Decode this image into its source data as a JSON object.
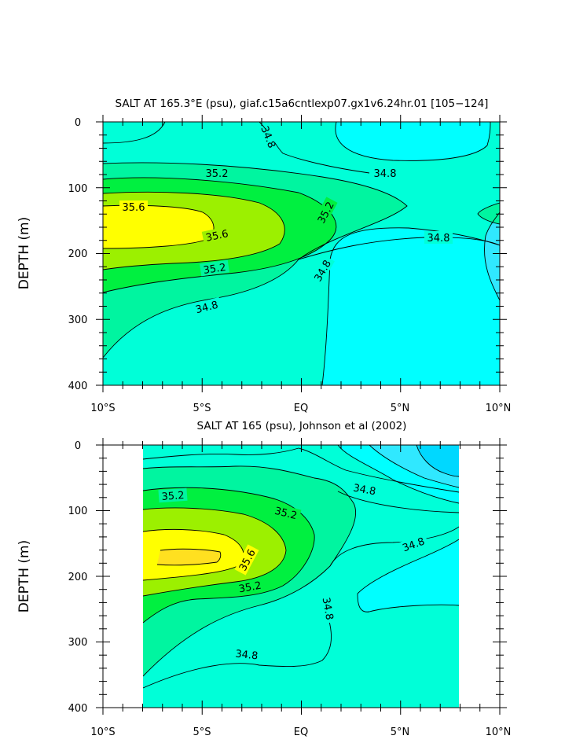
{
  "chart_data": [
    {
      "type": "contour",
      "title": "SALT AT 165.3°E (psu), giaf.c15a6cntlexp07.gx1v6.24hr.01 [105−124]",
      "ylabel": "DEPTH (m)",
      "xlabel": "",
      "x_tick_labels": [
        "10°S",
        "5°S",
        "EQ",
        "5°N",
        "10°N"
      ],
      "y_tick_labels": [
        "0",
        "100",
        "200",
        "300",
        "400"
      ],
      "xlim": [
        -10,
        10
      ],
      "ylim": [
        0,
        400
      ],
      "contour_levels": [
        34.6,
        34.8,
        35.0,
        35.2,
        35.4,
        35.6
      ],
      "contour_labels": [
        "34.8",
        "34.8",
        "35.2",
        "35.6",
        "35.6",
        "35.2",
        "35.2",
        "34.8",
        "34.8",
        "34.8"
      ]
    },
    {
      "type": "contour",
      "title": "SALT AT 165 (psu), Johnson et al (2002)",
      "ylabel": "DEPTH (m)",
      "xlabel": "",
      "x_tick_labels": [
        "10°S",
        "5°S",
        "EQ",
        "5°N",
        "10°N"
      ],
      "y_tick_labels": [
        "0",
        "100",
        "200",
        "300",
        "400"
      ],
      "xlim": [
        -10,
        10
      ],
      "ylim": [
        0,
        400
      ],
      "data_xrange": [
        -8,
        8
      ],
      "contour_levels": [
        34.4,
        34.6,
        34.8,
        35.0,
        35.2,
        35.4,
        35.6
      ],
      "contour_labels": [
        "35.2",
        "35.2",
        "34.8",
        "35.6",
        "35.2",
        "34.8",
        "34.8",
        "34.8"
      ]
    }
  ],
  "colors": {
    "cyan": "#00ffff",
    "aqua_green": "#00ffd8",
    "aquamarine": "#00f5a0",
    "green": "#00f040",
    "yellow_green": "#9cf000",
    "yellow": "#ffff00",
    "gold": "#ffe020",
    "light_blue": "#30e8ff",
    "sky_blue": "#00d8ff"
  }
}
